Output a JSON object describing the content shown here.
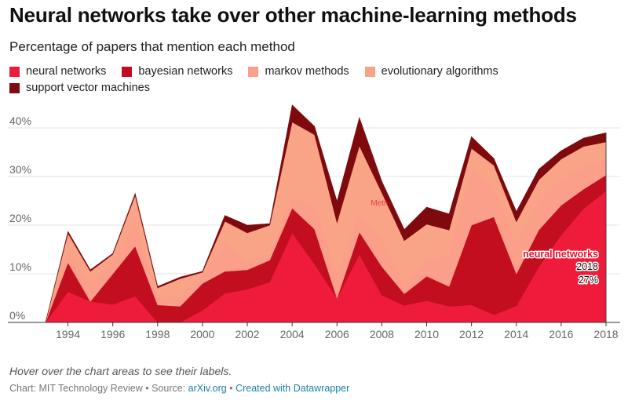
{
  "header": {
    "title": "Neural networks take over other machine-learning methods",
    "subtitle": "Percentage of papers that mention each method"
  },
  "chart_data": {
    "type": "area",
    "stacked": true,
    "x": [
      1993,
      1994,
      1995,
      1996,
      1997,
      1998,
      1999,
      2000,
      2001,
      2002,
      2003,
      2004,
      2005,
      2006,
      2007,
      2008,
      2009,
      2010,
      2011,
      2012,
      2013,
      2014,
      2015,
      2016,
      2017,
      2018
    ],
    "x_tick_labels": [
      "1994",
      "1996",
      "1998",
      "2000",
      "2002",
      "2004",
      "2006",
      "2008",
      "2010",
      "2012",
      "2014",
      "2016",
      "2018"
    ],
    "y_tick_labels": [
      "0%",
      "10%",
      "20%",
      "30%",
      "40%"
    ],
    "ylim": [
      0,
      45
    ],
    "grid": true,
    "legend_position": "top",
    "series": [
      {
        "name": "neural networks",
        "color": "#ee1c3a",
        "values": [
          0,
          6.3,
          4.3,
          3.7,
          5.4,
          0,
          0,
          2.5,
          6,
          6.8,
          8.3,
          18.4,
          12,
          5,
          14,
          5.6,
          3.5,
          4.5,
          3.3,
          3.6,
          1.6,
          3.4,
          11.4,
          18,
          23.4,
          27
        ]
      },
      {
        "name": "bayesian networks",
        "color": "#c20e1e",
        "values": [
          0,
          6,
          0,
          6.3,
          10.3,
          3.6,
          3.3,
          5.5,
          4.5,
          4,
          4.5,
          5.1,
          7.2,
          0,
          4.6,
          5.9,
          2.4,
          5,
          4.1,
          16.4,
          20.1,
          6.6,
          7.6,
          6.1,
          4,
          3.3
        ]
      },
      {
        "name": "markov methods",
        "color": "#fb9e8a",
        "values": [
          0,
          2.4,
          4,
          2.5,
          5.4,
          1.3,
          2.3,
          2,
          5.9,
          1.6,
          1.5,
          2,
          5,
          5.1,
          4,
          5.6,
          2.4,
          3.3,
          6.4,
          11.4,
          6.2,
          6.1,
          6,
          5.3,
          4.4,
          3.6
        ]
      },
      {
        "name": "evolutionary algorithms",
        "color": "#faa487",
        "values": [
          0,
          3.6,
          2.2,
          1.5,
          5,
          2.2,
          3.4,
          0.3,
          4.4,
          6,
          5.7,
          15.7,
          14.4,
          10.4,
          13.7,
          9.6,
          8.5,
          7.4,
          5.2,
          4.4,
          4.4,
          4.6,
          4.3,
          4.2,
          4.4,
          3.2
        ]
      },
      {
        "name": "support vector machines",
        "color": "#7e0a0e",
        "values": [
          0,
          0.4,
          0.3,
          0.2,
          0.4,
          0.3,
          0.3,
          0.2,
          1.2,
          1.6,
          0.3,
          3.5,
          1.7,
          4.4,
          5.8,
          2.3,
          2.3,
          3.5,
          3.3,
          2.4,
          1.4,
          2.1,
          2.2,
          1.7,
          1.7,
          1.9
        ]
      }
    ],
    "annotation": {
      "series": "neural networks",
      "year": "2018",
      "value": "27%"
    },
    "hover_label": "Metm"
  },
  "footnote": {
    "note": "Hover over the chart areas to see their labels.",
    "chart_credit": "Chart: MIT Technology Review",
    "separator": " • ",
    "source_label": "Source: ",
    "source_link": "arXiv.org",
    "created_with": "Created with Datawrapper"
  }
}
